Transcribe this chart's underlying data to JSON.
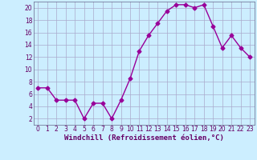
{
  "x": [
    0,
    1,
    2,
    3,
    4,
    5,
    6,
    7,
    8,
    9,
    10,
    11,
    12,
    13,
    14,
    15,
    16,
    17,
    18,
    19,
    20,
    21,
    22,
    23
  ],
  "y": [
    7,
    7,
    5,
    5,
    5,
    2,
    4.5,
    4.5,
    2,
    5,
    8.5,
    13,
    15.5,
    17.5,
    19.5,
    20.5,
    20.5,
    20,
    20.5,
    17,
    13.5,
    15.5,
    13.5,
    12
  ],
  "line_color": "#990099",
  "marker": "D",
  "markersize": 2.5,
  "linewidth": 1.0,
  "xlabel": "Windchill (Refroidissement éolien,°C)",
  "xlabel_fontsize": 6.5,
  "background_color": "#cceeff",
  "grid_color": "#aaaacc",
  "xlim": [
    -0.5,
    23.5
  ],
  "ylim": [
    1,
    21
  ],
  "yticks": [
    2,
    4,
    6,
    8,
    10,
    12,
    14,
    16,
    18,
    20
  ],
  "xticks": [
    0,
    1,
    2,
    3,
    4,
    5,
    6,
    7,
    8,
    9,
    10,
    11,
    12,
    13,
    14,
    15,
    16,
    17,
    18,
    19,
    20,
    21,
    22,
    23
  ],
  "tick_fontsize": 5.5,
  "tick_color": "#660066"
}
